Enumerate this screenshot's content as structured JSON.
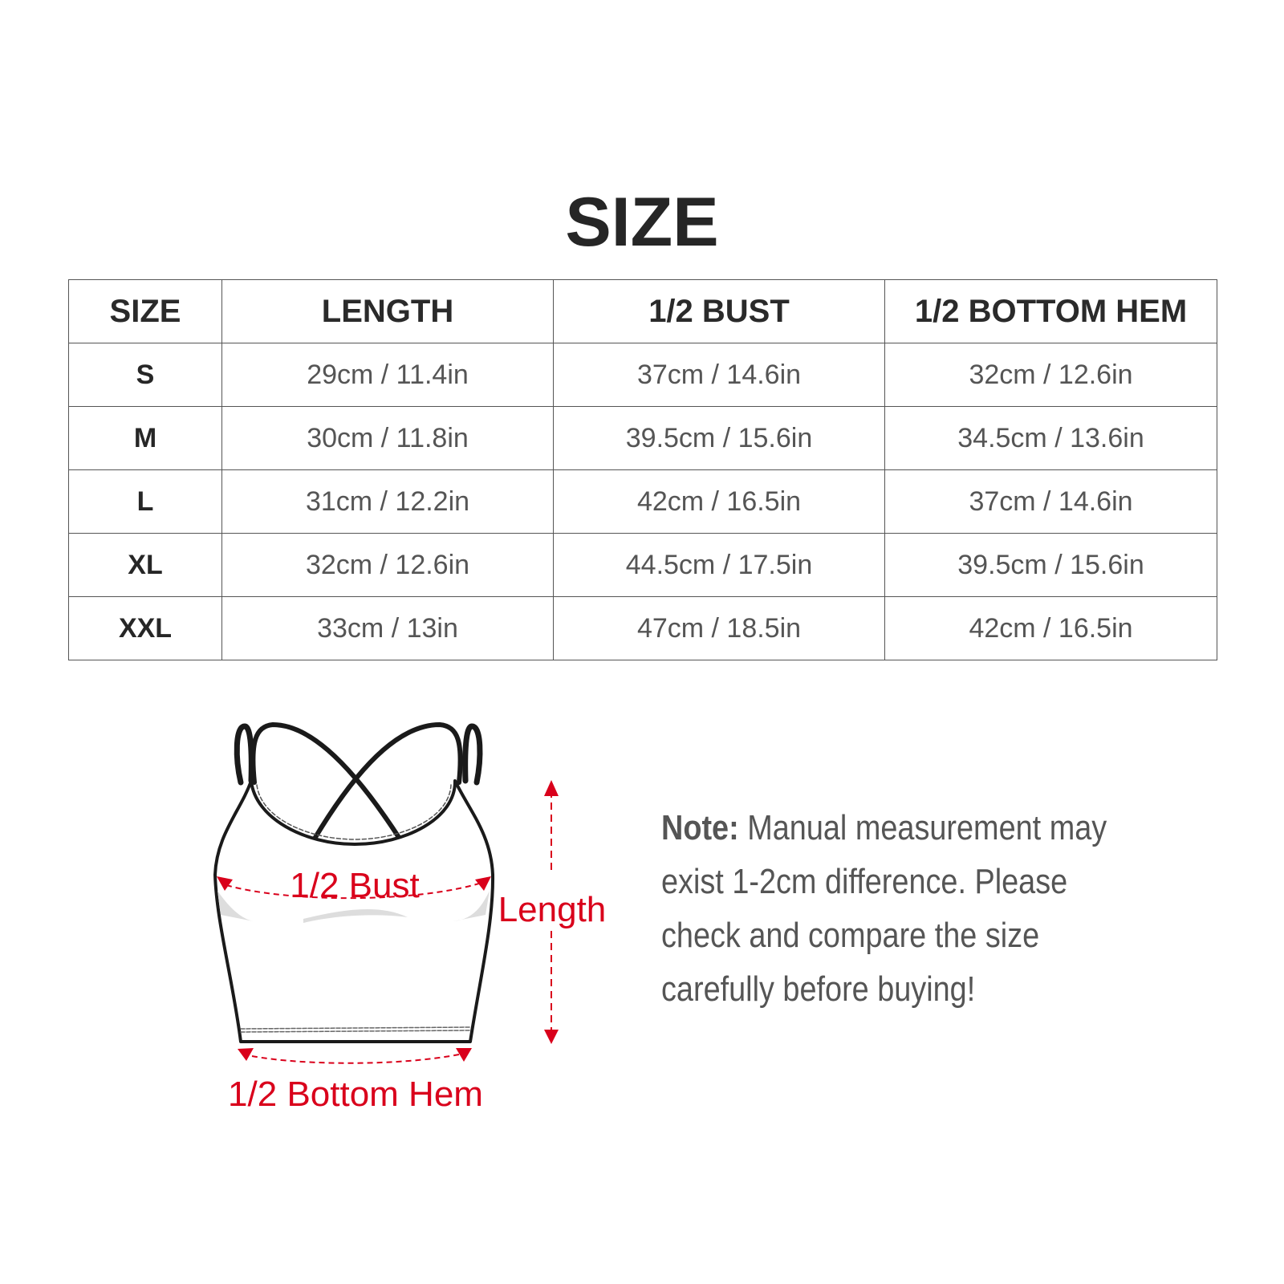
{
  "title": "SIZE",
  "table": {
    "headers": [
      "SIZE",
      "LENGTH",
      "1/2 BUST",
      "1/2 BOTTOM HEM"
    ],
    "rows": [
      [
        "S",
        "29cm / 11.4in",
        "37cm / 14.6in",
        "32cm / 12.6in"
      ],
      [
        "M",
        "30cm / 11.8in",
        "39.5cm / 15.6in",
        "34.5cm / 13.6in"
      ],
      [
        "L",
        "31cm / 12.2in",
        "42cm / 16.5in",
        "37cm / 14.6in"
      ],
      [
        "XL",
        "32cm / 12.6in",
        "44.5cm / 17.5in",
        "39.5cm / 15.6in"
      ],
      [
        "XXL",
        "33cm / 13in",
        "47cm / 18.5in",
        "42cm / 16.5in"
      ]
    ]
  },
  "diagram": {
    "bust_label": "1/2 Bust",
    "length_label": "Length",
    "hem_label": "1/2 Bottom Hem",
    "accent_color": "#d9001b"
  },
  "note": {
    "label": "Note:",
    "text": "Manual measurement may exist 1-2cm difference. Please check and compare the size carefully before buying!"
  }
}
